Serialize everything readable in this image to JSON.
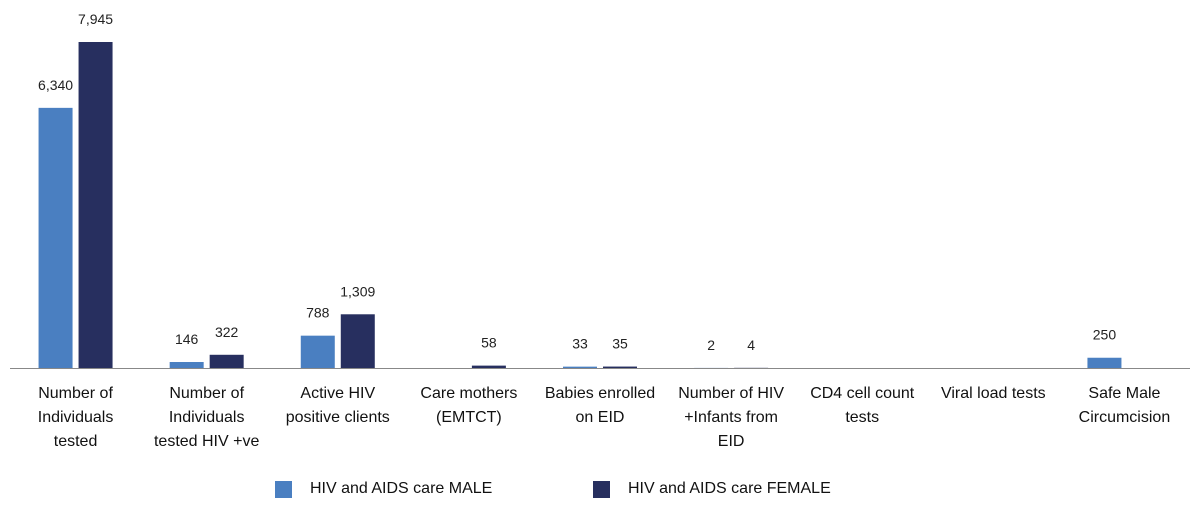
{
  "chart_data": {
    "type": "bar",
    "categories": [
      "Number of Individuals tested",
      "Number of Individuals tested HIV +ve",
      "Active HIV positive clients",
      "Care mothers (EMTCT)",
      "Babies enrolled on EID",
      "Number of HIV +Infants from EID",
      "CD4 cell count tests",
      "Viral load tests",
      "Safe Male Circumcision"
    ],
    "series": [
      {
        "name": "HIV and AIDS care MALE",
        "color": "#4a7fc1",
        "values": [
          6340,
          146,
          788,
          null,
          33,
          2,
          null,
          null,
          250
        ],
        "value_labels": [
          "6,340",
          "146",
          "788",
          null,
          "33",
          "2",
          null,
          null,
          "250"
        ]
      },
      {
        "name": "HIV and AIDS care FEMALE",
        "color": "#272f5f",
        "values": [
          7945,
          322,
          1309,
          58,
          35,
          4,
          null,
          null,
          null
        ],
        "value_labels": [
          "7,945",
          "322",
          "1,309",
          "58",
          "35",
          "4",
          null,
          null,
          null
        ]
      }
    ]
  }
}
